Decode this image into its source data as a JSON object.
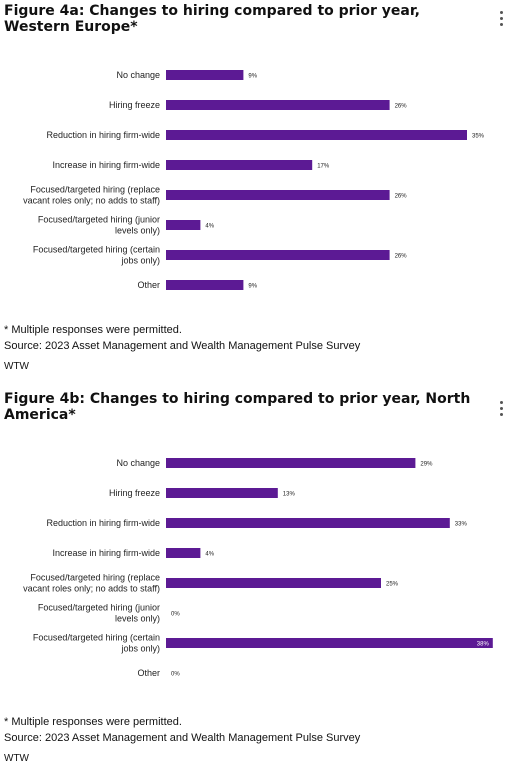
{
  "figures": [
    {
      "title": "Figure 4a: Changes to hiring compared to prior year, Western Europe*",
      "footnote": "* Multiple responses were permitted.",
      "source": "Source: 2023 Asset Management and Wealth Management Pulse Survey",
      "org": "WTW"
    },
    {
      "title": "Figure 4b: Changes to hiring compared to prior year, North America*",
      "footnote": "* Multiple responses were permitted.",
      "source": "Source: 2023 Asset Management and Wealth Management Pulse Survey",
      "org": "WTW"
    }
  ],
  "colors": {
    "bar": "#5c1a94",
    "text": "#222222"
  },
  "menu_icon": "kebab-menu-icon",
  "chart_data": [
    {
      "type": "bar",
      "orientation": "horizontal",
      "title": "Figure 4a: Changes to hiring compared to prior year, Western Europe*",
      "categories": [
        "No change",
        "Hiring freeze",
        "Reduction in hiring firm-wide",
        "Increase in hiring firm-wide",
        "Focused/targeted hiring (replace vacant roles only; no adds to staff)",
        "Focused/targeted hiring (junior levels only)",
        "Focused/targeted hiring (certain jobs only)",
        "Other"
      ],
      "category_lines": [
        [
          "No change"
        ],
        [
          "Hiring freeze"
        ],
        [
          "Reduction in hiring firm-wide"
        ],
        [
          "Increase in hiring firm-wide"
        ],
        [
          "Focused/targeted hiring (replace",
          "vacant roles only; no adds to staff)"
        ],
        [
          "Focused/targeted hiring (junior",
          "levels only)"
        ],
        [
          "Focused/targeted hiring (certain",
          "jobs only)"
        ],
        [
          "Other"
        ]
      ],
      "values": [
        9,
        26,
        35,
        17,
        26,
        4,
        26,
        9
      ],
      "value_labels": [
        "9%",
        "26%",
        "35%",
        "17%",
        "26%",
        "4%",
        "26%",
        "9%"
      ],
      "xlim": [
        0,
        35
      ],
      "grid": false,
      "legend": "none"
    },
    {
      "type": "bar",
      "orientation": "horizontal",
      "title": "Figure 4b: Changes to hiring compared to prior year, North America*",
      "categories": [
        "No change",
        "Hiring freeze",
        "Reduction in hiring firm-wide",
        "Increase in hiring firm-wide",
        "Focused/targeted hiring (replace vacant roles only; no adds to staff)",
        "Focused/targeted hiring (junior levels only)",
        "Focused/targeted hiring (certain jobs only)",
        "Other"
      ],
      "category_lines": [
        [
          "No change"
        ],
        [
          "Hiring freeze"
        ],
        [
          "Reduction in hiring firm-wide"
        ],
        [
          "Increase in hiring firm-wide"
        ],
        [
          "Focused/targeted hiring (replace",
          "vacant roles only; no adds to staff)"
        ],
        [
          "Focused/targeted hiring (junior",
          "levels only)"
        ],
        [
          "Focused/targeted hiring (certain",
          "jobs only)"
        ],
        [
          "Other"
        ]
      ],
      "values": [
        29,
        13,
        33,
        4,
        25,
        0,
        38,
        0
      ],
      "value_labels": [
        "29%",
        "13%",
        "33%",
        "4%",
        "25%",
        "0%",
        "38%",
        "0%"
      ],
      "xlim": [
        0,
        38
      ],
      "grid": false,
      "legend": "none"
    }
  ]
}
